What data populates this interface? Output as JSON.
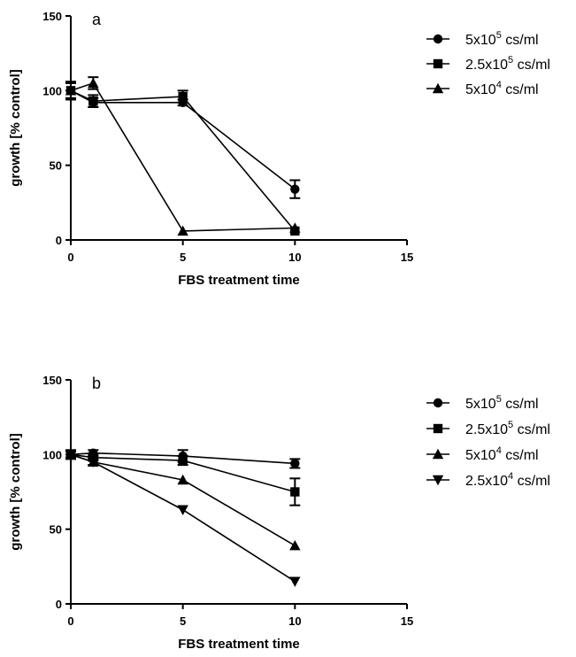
{
  "chart_data": [
    {
      "type": "line",
      "panel_label": "a",
      "xlabel": "FBS treatment time",
      "ylabel": "growth [% control]",
      "xlim": [
        0,
        15
      ],
      "ylim": [
        0,
        150
      ],
      "xticks": [
        0,
        5,
        10,
        15
      ],
      "yticks": [
        0,
        50,
        100,
        150
      ],
      "legend_position": "right",
      "series": [
        {
          "name": "5x10^5 cs/ml",
          "base": "5x10",
          "exp": "5",
          "unit": " cs/ml",
          "marker": "circle",
          "x": [
            0,
            1,
            5,
            10
          ],
          "y": [
            100,
            92,
            92,
            34
          ],
          "err": [
            5,
            3,
            2,
            6
          ]
        },
        {
          "name": "2.5x10^5 cs/ml",
          "base": "2.5x10",
          "exp": "5",
          "unit": " cs/ml",
          "marker": "square",
          "x": [
            0,
            1,
            5,
            10
          ],
          "y": [
            100,
            93,
            96,
            6
          ],
          "err": [
            6,
            4,
            4,
            0
          ]
        },
        {
          "name": "5x10^4 cs/ml",
          "base": "5x10",
          "exp": "4",
          "unit": " cs/ml",
          "marker": "triangle-up",
          "x": [
            0,
            1,
            5,
            10
          ],
          "y": [
            100,
            105,
            6,
            8
          ],
          "err": [
            0,
            4,
            0,
            0
          ]
        }
      ]
    },
    {
      "type": "line",
      "panel_label": "b",
      "xlabel": "FBS treatment time",
      "ylabel": "growth [% control]",
      "xlim": [
        0,
        15
      ],
      "ylim": [
        0,
        150
      ],
      "xticks": [
        0,
        5,
        10,
        15
      ],
      "yticks": [
        0,
        50,
        100,
        150
      ],
      "legend_position": "right",
      "series": [
        {
          "name": "5x10^5 cs/ml",
          "base": "5x10",
          "exp": "5",
          "unit": " cs/ml",
          "marker": "circle",
          "x": [
            0,
            1,
            5,
            10
          ],
          "y": [
            100,
            101,
            99,
            94
          ],
          "err": [
            2,
            2,
            4,
            3
          ]
        },
        {
          "name": "2.5x10^5 cs/ml",
          "base": "2.5x10",
          "exp": "5",
          "unit": " cs/ml",
          "marker": "square",
          "x": [
            0,
            1,
            5,
            10
          ],
          "y": [
            100,
            98,
            96,
            75
          ],
          "err": [
            3,
            2,
            3,
            9
          ]
        },
        {
          "name": "5x10^4 cs/ml",
          "base": "5x10",
          "exp": "4",
          "unit": " cs/ml",
          "marker": "triangle-up",
          "x": [
            0,
            1,
            5,
            10
          ],
          "y": [
            100,
            95,
            83,
            39
          ],
          "err": [
            2,
            2,
            0,
            0
          ]
        },
        {
          "name": "2.5x10^4 cs/ml",
          "base": "2.5x10",
          "exp": "4",
          "unit": " cs/ml",
          "marker": "triangle-down",
          "x": [
            0,
            1,
            5,
            10
          ],
          "y": [
            100,
            95,
            63,
            15
          ],
          "err": [
            2,
            2,
            0,
            0
          ]
        }
      ]
    }
  ]
}
